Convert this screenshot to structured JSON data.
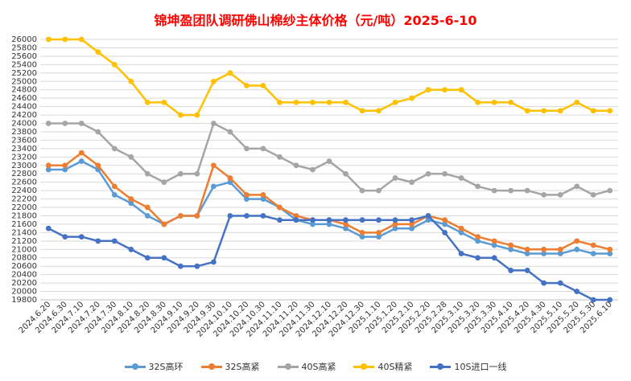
{
  "chart_data": {
    "type": "line",
    "title": "锦坤盈团队调研佛山棉纱主体价格（元/吨）2025-6-10",
    "xlabel": "",
    "ylabel": "",
    "ylim": [
      19800,
      26000
    ],
    "ytick_step": 200,
    "grid": true,
    "legend_position": "bottom",
    "x": [
      "2024.6.20",
      "2024.6.30",
      "2024.7.10",
      "2024.7.20",
      "2024.7.30",
      "2024.8.10",
      "2024.8.20",
      "2024.8.30",
      "2024.9.10",
      "2024.9.20",
      "2024.9.30",
      "2024.10.10",
      "2024.10.20",
      "2024.10.30",
      "2024.11.10",
      "2024.11.20",
      "2024.11.30",
      "2024.12.10",
      "2024.12.20",
      "2024.12.30",
      "2025.1.10",
      "2025.1.20",
      "2025.2.10",
      "2025.2.20",
      "2025.2.28",
      "2025.3.10",
      "2025.3.20",
      "2025.3.30",
      "2025.4.10",
      "2025.4.20",
      "2025.4.30",
      "2025.5.10",
      "2025.5.20",
      "2025.5.30",
      "2025.6.10"
    ],
    "series": [
      {
        "name": "32S高环",
        "color": "#5b9bd5",
        "values": [
          22900,
          22900,
          23100,
          22900,
          22300,
          22100,
          21800,
          21600,
          21800,
          21800,
          22500,
          22600,
          22200,
          22200,
          22000,
          21700,
          21600,
          21600,
          21500,
          21300,
          21300,
          21500,
          21500,
          21700,
          21600,
          21400,
          21200,
          21100,
          21000,
          20900,
          20900,
          20900,
          21000,
          20900,
          20900
        ]
      },
      {
        "name": "32S高紧",
        "color": "#ed7d31",
        "values": [
          23000,
          23000,
          23300,
          23000,
          22500,
          22200,
          22000,
          21600,
          21800,
          21800,
          23000,
          22700,
          22300,
          22300,
          22000,
          21800,
          21700,
          21700,
          21600,
          21400,
          21400,
          21600,
          21600,
          21800,
          21700,
          21500,
          21300,
          21200,
          21100,
          21000,
          21000,
          21000,
          21200,
          21100,
          21000
        ]
      },
      {
        "name": "40S高紧",
        "color": "#a5a5a5",
        "values": [
          24000,
          24000,
          24000,
          23800,
          23400,
          23200,
          22800,
          22600,
          22800,
          22800,
          24000,
          23800,
          23400,
          23400,
          23200,
          23000,
          22900,
          23100,
          22800,
          22400,
          22400,
          22700,
          22600,
          22800,
          22800,
          22700,
          22500,
          22400,
          22400,
          22400,
          22300,
          22300,
          22500,
          22300,
          22400
        ]
      },
      {
        "name": "40S精紧",
        "color": "#ffc000",
        "values": [
          26000,
          26000,
          26000,
          25700,
          25400,
          25000,
          24500,
          24500,
          24200,
          24200,
          25000,
          25200,
          24900,
          24900,
          24500,
          24500,
          24500,
          24500,
          24500,
          24300,
          24300,
          24500,
          24600,
          24800,
          24800,
          24800,
          24500,
          24500,
          24500,
          24300,
          24300,
          24300,
          24500,
          24300,
          24300
        ]
      },
      {
        "name": "10S进口一线",
        "color": "#4472c4",
        "values": [
          21500,
          21300,
          21300,
          21200,
          21200,
          21000,
          20800,
          20800,
          20600,
          20600,
          20700,
          21800,
          21800,
          21800,
          21700,
          21700,
          21700,
          21700,
          21700,
          21700,
          21700,
          21700,
          21700,
          21800,
          21400,
          20900,
          20800,
          20800,
          20500,
          20500,
          20200,
          20200,
          20000,
          19800,
          19800
        ]
      }
    ]
  }
}
